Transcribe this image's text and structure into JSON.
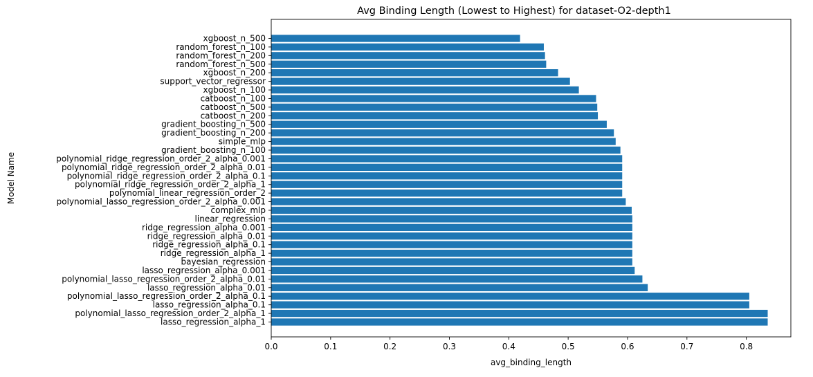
{
  "chart_data": {
    "type": "bar",
    "orientation": "horizontal",
    "title": "Avg Binding Length (Lowest to Highest) for dataset-O2-depth1",
    "xlabel": "avg_binding_length",
    "ylabel": "Model Name",
    "xlim": [
      0,
      0.875
    ],
    "xticks": [
      "0.0",
      "0.1",
      "0.2",
      "0.3",
      "0.4",
      "0.5",
      "0.6",
      "0.7",
      "0.8"
    ],
    "bar_color": "#1f77b4",
    "grid": false,
    "categories": [
      "xgboost_n_500",
      "random_forest_n_100",
      "random_forest_n_200",
      "random_forest_n_500",
      "xgboost_n_200",
      "support_vector_regressor",
      "xgboost_n_100",
      "catboost_n_100",
      "catboost_n_500",
      "catboost_n_200",
      "gradient_boosting_n_500",
      "gradient_boosting_n_200",
      "simple_mlp",
      "gradient_boosting_n_100",
      "polynomial_ridge_regression_order_2_alpha_0.001",
      "polynomial_ridge_regression_order_2_alpha_0.01",
      "polynomial_ridge_regression_order_2_alpha_0.1",
      "polynomial_ridge_regression_order_2_alpha_1",
      "polynomial_linear_regression_order_2",
      "polynomial_lasso_regression_order_2_alpha_0.001",
      "complex_mlp",
      "linear_regression",
      "ridge_regression_alpha_0.001",
      "ridge_regression_alpha_0.01",
      "ridge_regression_alpha_0.1",
      "ridge_regression_alpha_1",
      "bayesian_regression",
      "lasso_regression_alpha_0.001",
      "polynomial_lasso_regression_order_2_alpha_0.01",
      "lasso_regression_alpha_0.01",
      "polynomial_lasso_regression_order_2_alpha_0.1",
      "lasso_regression_alpha_0.1",
      "polynomial_lasso_regression_order_2_alpha_1",
      "lasso_regression_alpha_1"
    ],
    "values": [
      0.419,
      0.459,
      0.461,
      0.463,
      0.483,
      0.503,
      0.518,
      0.547,
      0.549,
      0.55,
      0.565,
      0.577,
      0.58,
      0.588,
      0.591,
      0.591,
      0.591,
      0.591,
      0.591,
      0.597,
      0.607,
      0.608,
      0.608,
      0.608,
      0.608,
      0.608,
      0.608,
      0.612,
      0.625,
      0.634,
      0.805,
      0.805,
      0.836,
      0.836
    ]
  }
}
